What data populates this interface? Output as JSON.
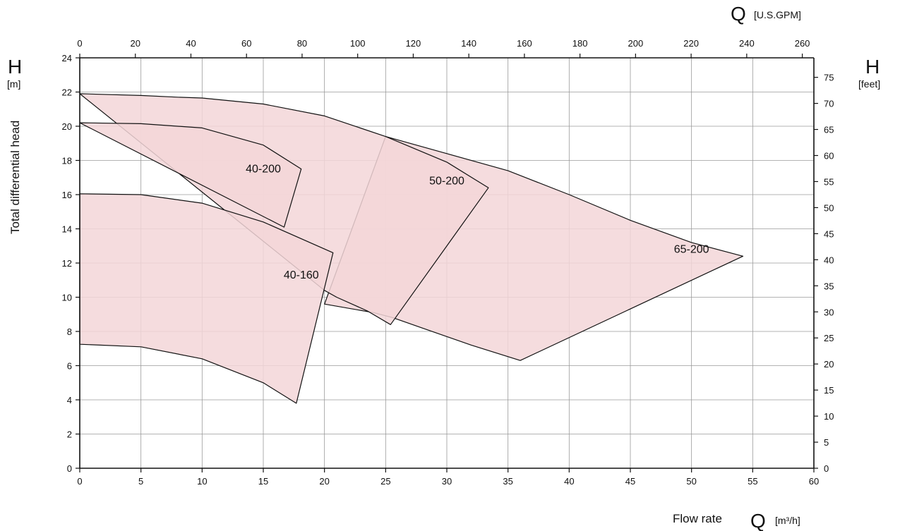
{
  "chart_data": {
    "type": "area",
    "title": "",
    "x_axis": {
      "label": "Flow rate",
      "symbol": "Q",
      "unit_text": "[m³/h]",
      "range": [
        0,
        60
      ],
      "ticks": [
        0,
        5,
        10,
        15,
        20,
        25,
        30,
        35,
        40,
        45,
        50,
        55,
        60
      ]
    },
    "x2_axis": {
      "symbol": "Q",
      "unit_text": "[U.S.GPM]",
      "range": [
        0,
        264.17
      ],
      "ticks": [
        0,
        20,
        40,
        60,
        80,
        100,
        120,
        140,
        160,
        180,
        200,
        220,
        240,
        260
      ]
    },
    "y_axis": {
      "label": "Total differential head",
      "symbol": "H",
      "unit_text": "[m]",
      "range": [
        0,
        24
      ],
      "ticks": [
        0,
        2,
        4,
        6,
        8,
        10,
        12,
        14,
        16,
        18,
        20,
        22,
        24
      ]
    },
    "y2_axis": {
      "symbol": "H",
      "unit_text": "[feet]",
      "range": [
        0,
        78.74
      ],
      "ticks": [
        0,
        5,
        10,
        15,
        20,
        25,
        30,
        35,
        40,
        45,
        50,
        55,
        60,
        65,
        70,
        75
      ]
    },
    "grid": true,
    "fill_color": "#f3d6d8",
    "line_color": "#111111",
    "series": [
      {
        "name": "65-200",
        "label_at": [
          50,
          12.6
        ],
        "points": [
          [
            25,
            19.4
          ],
          [
            30,
            18.4
          ],
          [
            35,
            17.4
          ],
          [
            40,
            16.0
          ],
          [
            45,
            14.5
          ],
          [
            50,
            13.2
          ],
          [
            54.2,
            12.4
          ],
          [
            36,
            6.3
          ],
          [
            32,
            7.2
          ],
          [
            28,
            8.2
          ],
          [
            25.6,
            8.8
          ],
          [
            24,
            9.1
          ],
          [
            20,
            9.6
          ]
        ]
      },
      {
        "name": "50-200",
        "label_at": [
          30,
          16.6
        ],
        "points": [
          [
            0,
            21.9
          ],
          [
            5,
            21.8
          ],
          [
            8,
            21.7
          ],
          [
            10,
            21.65
          ],
          [
            15,
            21.3
          ],
          [
            20,
            20.6
          ],
          [
            25,
            19.4
          ],
          [
            30,
            17.9
          ],
          [
            33.4,
            16.4
          ],
          [
            25.4,
            8.4
          ],
          [
            23.5,
            9.2
          ],
          [
            21,
            10.0
          ],
          [
            20,
            10.4
          ]
        ]
      },
      {
        "name": "40-200",
        "label_at": [
          15,
          17.3
        ],
        "points": [
          [
            0,
            20.2
          ],
          [
            5,
            20.15
          ],
          [
            10,
            19.9
          ],
          [
            15,
            18.9
          ],
          [
            18.1,
            17.5
          ],
          [
            16.7,
            14.1
          ]
        ]
      },
      {
        "name": "40-160",
        "label_at": [
          18.1,
          11.1
        ],
        "points": [
          [
            0,
            16.05
          ],
          [
            5,
            16.0
          ],
          [
            10,
            15.5
          ],
          [
            15,
            14.4
          ],
          [
            20.7,
            12.6
          ],
          [
            17.7,
            3.8
          ],
          [
            15,
            5.0
          ],
          [
            10,
            6.4
          ],
          [
            5,
            7.1
          ],
          [
            0,
            7.25
          ]
        ]
      }
    ]
  }
}
